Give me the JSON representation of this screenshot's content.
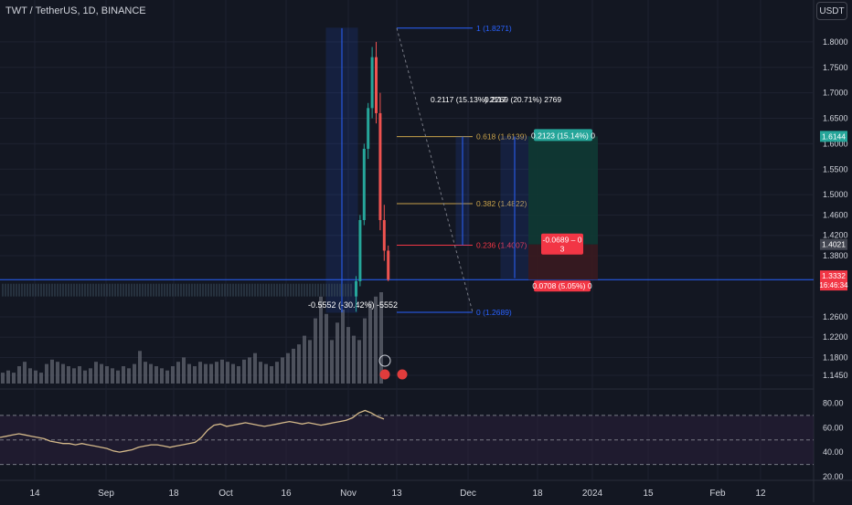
{
  "header": {
    "symbol_title": "TWT / TetherUS, 1D, BINANCE",
    "currency_button": "USDT"
  },
  "colors": {
    "background": "#131722",
    "grid": "#1e2230",
    "text": "#d1d4dc",
    "up_candle": "#26a69a",
    "down_candle": "#ef5350",
    "volume_bar": "#5d606b",
    "blue_line": "#2962ff",
    "fib_gold": "#c8a24a",
    "fib_red": "#f23645",
    "rsi_line": "#d4b98a",
    "rsi_band": "#2a1f3a"
  },
  "chart_data": [
    {
      "type": "candlestick",
      "title": "TWT / TetherUS, 1D, BINANCE",
      "ylim": [
        1.12,
        1.85
      ],
      "x_tick_labels": [
        "14",
        "Sep",
        "18",
        "Oct",
        "16",
        "Nov",
        "13",
        "Dec",
        "18",
        "2024",
        "15",
        "Feb",
        "12"
      ],
      "price_axis_labels": [
        "1.8000",
        "1.7500",
        "1.7000",
        "1.6500",
        "1.6000",
        "1.5500",
        "1.5000",
        "1.4600",
        "1.4200",
        "1.3800",
        "1.2600",
        "1.2200",
        "1.1800",
        "1.1450"
      ],
      "flat_period": {
        "price_low": 1.3,
        "price_high": 1.325
      },
      "candles": [
        {
          "open": 1.3,
          "high": 1.34,
          "low": 1.27,
          "close": 1.33
        },
        {
          "open": 1.33,
          "high": 1.46,
          "low": 1.32,
          "close": 1.45
        },
        {
          "open": 1.45,
          "high": 1.6,
          "low": 1.44,
          "close": 1.59
        },
        {
          "open": 1.59,
          "high": 1.68,
          "low": 1.57,
          "close": 1.67
        },
        {
          "open": 1.67,
          "high": 1.79,
          "low": 1.65,
          "close": 1.77
        },
        {
          "open": 1.77,
          "high": 1.8,
          "low": 1.64,
          "close": 1.66
        },
        {
          "open": 1.66,
          "high": 1.7,
          "low": 1.43,
          "close": 1.45
        },
        {
          "open": 1.45,
          "high": 1.48,
          "low": 1.37,
          "close": 1.39
        },
        {
          "open": 1.39,
          "high": 1.4,
          "low": 1.33,
          "close": 1.333
        }
      ],
      "current_price": {
        "label": "1.3332",
        "countdown": "16:46:34"
      },
      "price_tags": [
        "1.6144",
        "1.4021",
        "1.3320",
        "1.3313"
      ],
      "horizontal_line": 1.333
    },
    {
      "type": "bar",
      "name": "Volume",
      "values": [
        5,
        6,
        5,
        8,
        10,
        7,
        6,
        5,
        9,
        11,
        10,
        9,
        8,
        7,
        8,
        6,
        7,
        10,
        9,
        8,
        7,
        6,
        8,
        7,
        9,
        15,
        10,
        9,
        8,
        7,
        6,
        8,
        10,
        12,
        9,
        8,
        10,
        9,
        9,
        10,
        11,
        10,
        9,
        8,
        11,
        12,
        14,
        10,
        9,
        8,
        10,
        12,
        14,
        16,
        18,
        22,
        20,
        30,
        40,
        32,
        20,
        28,
        34,
        26,
        22,
        20,
        30,
        38,
        40,
        42
      ]
    },
    {
      "type": "line",
      "name": "RSI",
      "ylim": [
        20,
        90
      ],
      "y_tick_labels": [
        "80.00",
        "60.00",
        "40.00",
        "20.00"
      ],
      "bands": [
        70,
        50,
        30
      ],
      "values": [
        52,
        53,
        54,
        55,
        54,
        53,
        52,
        51,
        49,
        48,
        47,
        47,
        46,
        47,
        46,
        45,
        44,
        43,
        41,
        40,
        41,
        42,
        44,
        45,
        46,
        46,
        45,
        44,
        45,
        46,
        47,
        48,
        52,
        58,
        62,
        63,
        61,
        62,
        63,
        64,
        63,
        62,
        61,
        62,
        63,
        64,
        65,
        64,
        63,
        64,
        63,
        62,
        63,
        64,
        65,
        66,
        68,
        72,
        74,
        72,
        69,
        67
      ]
    }
  ],
  "drawings": {
    "measure_down_label": "-0.5552 (-30.42%) -5552",
    "fib": {
      "level_1": "1 (1.8271)",
      "level_0618": "0.618 (1.6139)",
      "level_0382": "0.382 (1.4822)",
      "level_0236": "0.236 (1.4007)",
      "level_0": "0 (1.2689)"
    },
    "measure_up_1": "0.2117 (15.13%) 2117",
    "measure_up_2": "0.2769 (20.71%) 2769",
    "position": {
      "target_label": "0.2123 (15.14%) 0",
      "stop_label_line1": "-0.0689 – 0",
      "stop_label_line2": "3",
      "entry_label": "0.0708 (5.05%) 0"
    }
  }
}
